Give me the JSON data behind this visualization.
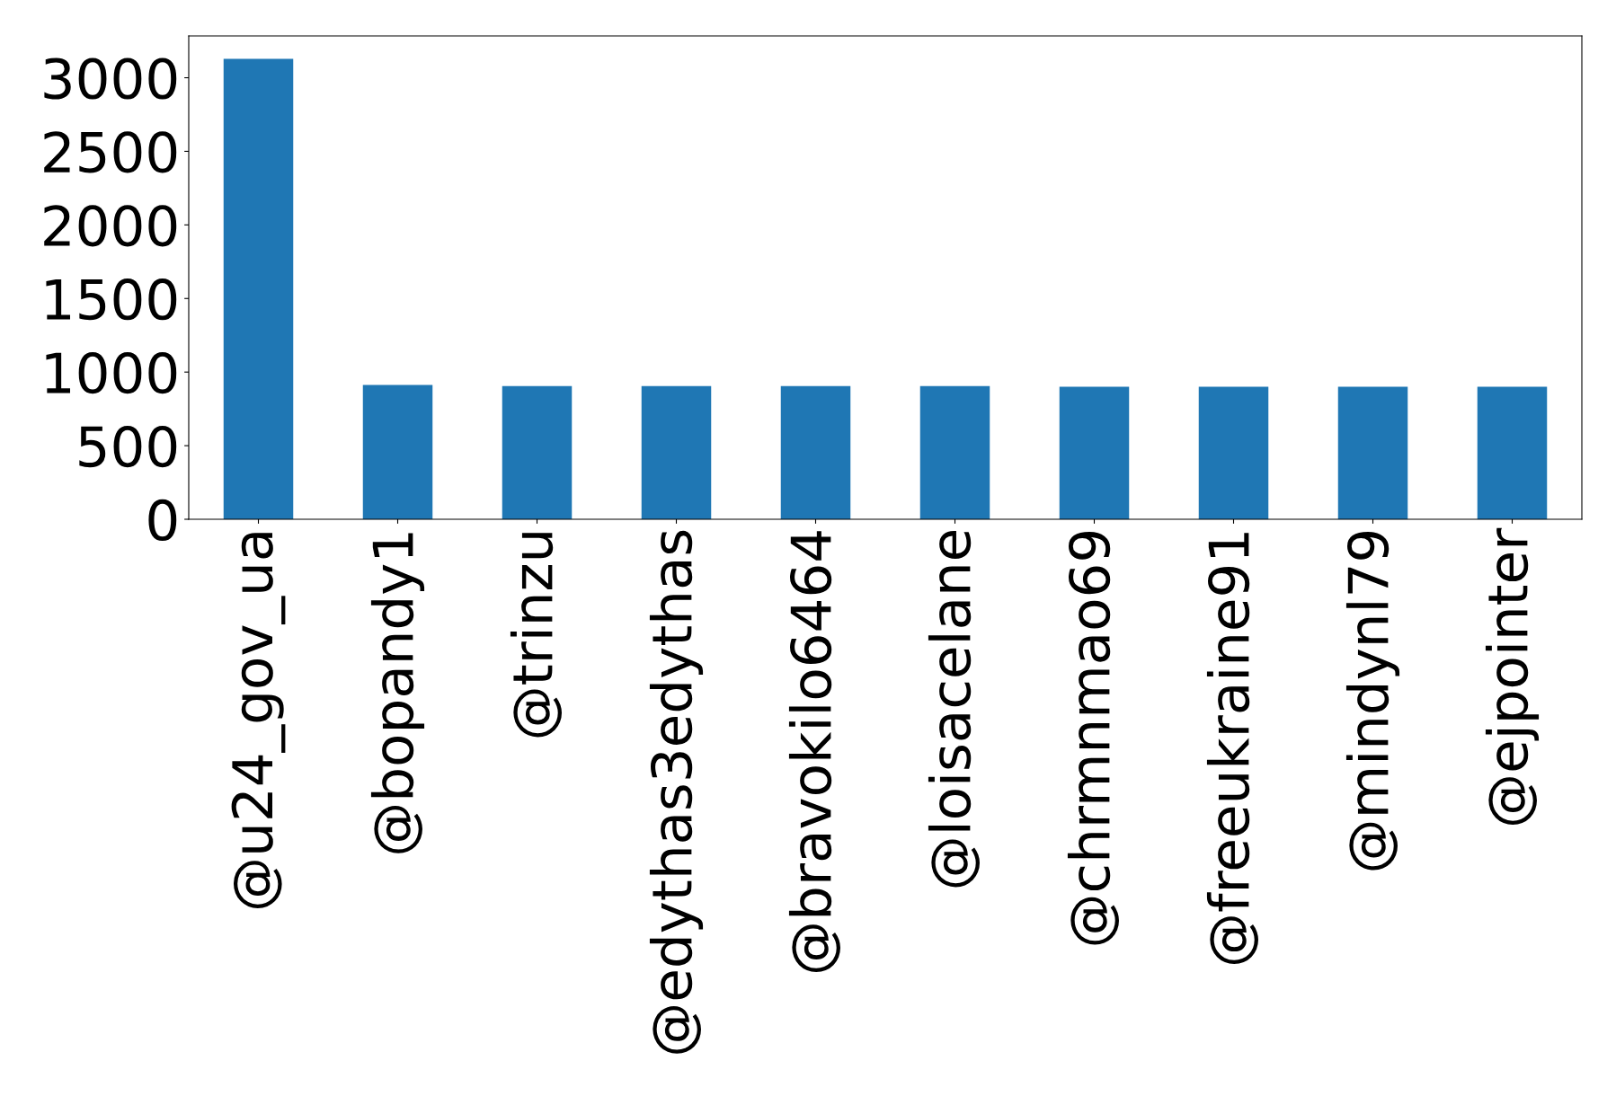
{
  "chart_data": {
    "type": "bar",
    "categories": [
      "@u24_gov_ua",
      "@bopandy1",
      "@trinzu",
      "@edythas3edythas",
      "@bravokilo6464",
      "@loisacelane",
      "@chrmnmao69",
      "@freeukraine91",
      "@mindynl79",
      "@ejpointer"
    ],
    "values": [
      3128,
      913,
      905,
      905,
      905,
      905,
      900,
      900,
      900,
      900
    ],
    "color": "#1f77b4",
    "ylim": [
      0,
      3284
    ],
    "yticks": [
      0,
      500,
      1000,
      1500,
      2000,
      2500,
      3000
    ],
    "grid": false
  }
}
